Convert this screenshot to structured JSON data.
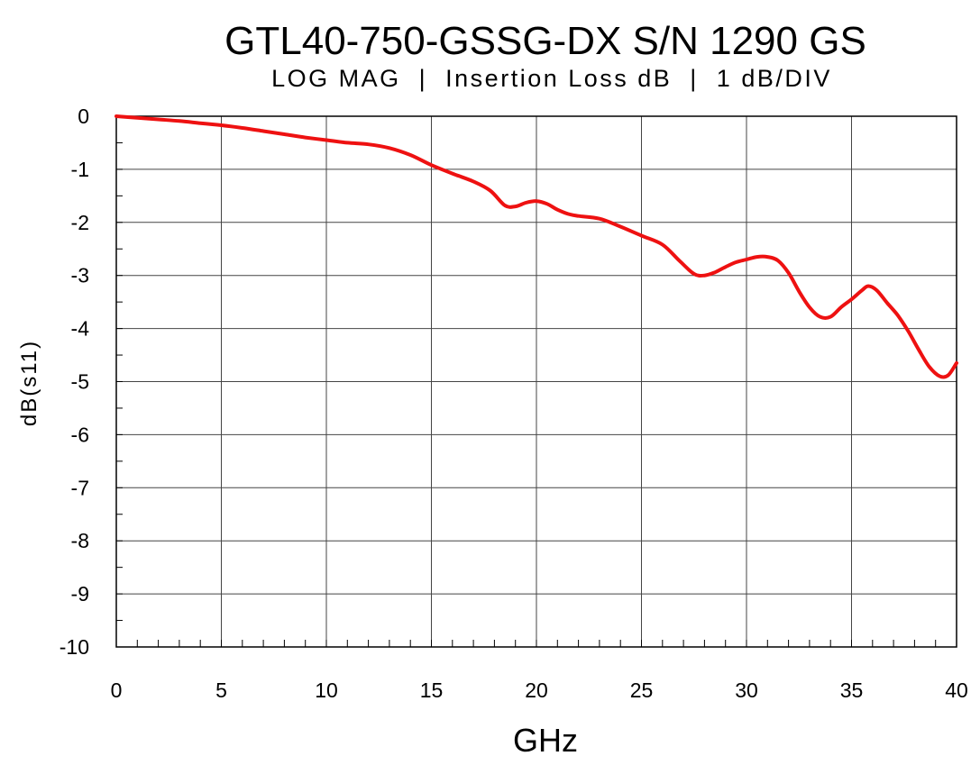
{
  "chart_data": {
    "type": "line",
    "title": "GTL40-750-GSSG-DX S/N 1290 GS",
    "subtitle": "LOG MAG  |  Insertion Loss dB  |  1 dB/DIV",
    "xlabel": "GHz",
    "ylabel": "dB(s11)",
    "xlim": [
      0,
      40
    ],
    "ylim": [
      -10,
      0
    ],
    "x_ticks": [
      "0",
      "5",
      "10",
      "15",
      "20",
      "25",
      "30",
      "35",
      "40"
    ],
    "y_ticks": [
      "0",
      "-1",
      "-2",
      "-3",
      "-4",
      "-5",
      "-6",
      "-7",
      "-8",
      "-9",
      "-10"
    ],
    "grid": true,
    "line_color": "#ee1111",
    "series": [
      {
        "x": [
          0,
          1,
          2,
          3,
          4,
          5,
          6,
          7,
          8,
          9,
          10,
          11,
          12,
          13,
          14,
          15,
          16,
          17,
          17.8,
          18.5,
          19,
          19.5,
          20,
          20.5,
          21,
          21.5,
          22,
          23,
          24,
          25,
          26,
          26.8,
          27.5,
          28,
          28.5,
          29,
          29.5,
          30,
          30.5,
          31,
          31.5,
          32,
          32.5,
          33,
          33.5,
          34,
          34.5,
          35,
          35.5,
          35.8,
          36.2,
          36.7,
          37.2,
          37.7,
          38.2,
          38.7,
          39.2,
          39.6,
          40
        ],
        "y": [
          0,
          -0.03,
          -0.06,
          -0.09,
          -0.13,
          -0.17,
          -0.22,
          -0.28,
          -0.34,
          -0.4,
          -0.45,
          -0.5,
          -0.53,
          -0.6,
          -0.73,
          -0.92,
          -1.08,
          -1.23,
          -1.4,
          -1.68,
          -1.7,
          -1.63,
          -1.6,
          -1.65,
          -1.76,
          -1.84,
          -1.88,
          -1.93,
          -2.08,
          -2.25,
          -2.42,
          -2.72,
          -2.97,
          -3.0,
          -2.94,
          -2.84,
          -2.75,
          -2.7,
          -2.65,
          -2.65,
          -2.72,
          -2.95,
          -3.3,
          -3.6,
          -3.78,
          -3.78,
          -3.6,
          -3.45,
          -3.28,
          -3.2,
          -3.28,
          -3.52,
          -3.75,
          -4.05,
          -4.4,
          -4.72,
          -4.9,
          -4.88,
          -4.65
        ]
      }
    ]
  }
}
